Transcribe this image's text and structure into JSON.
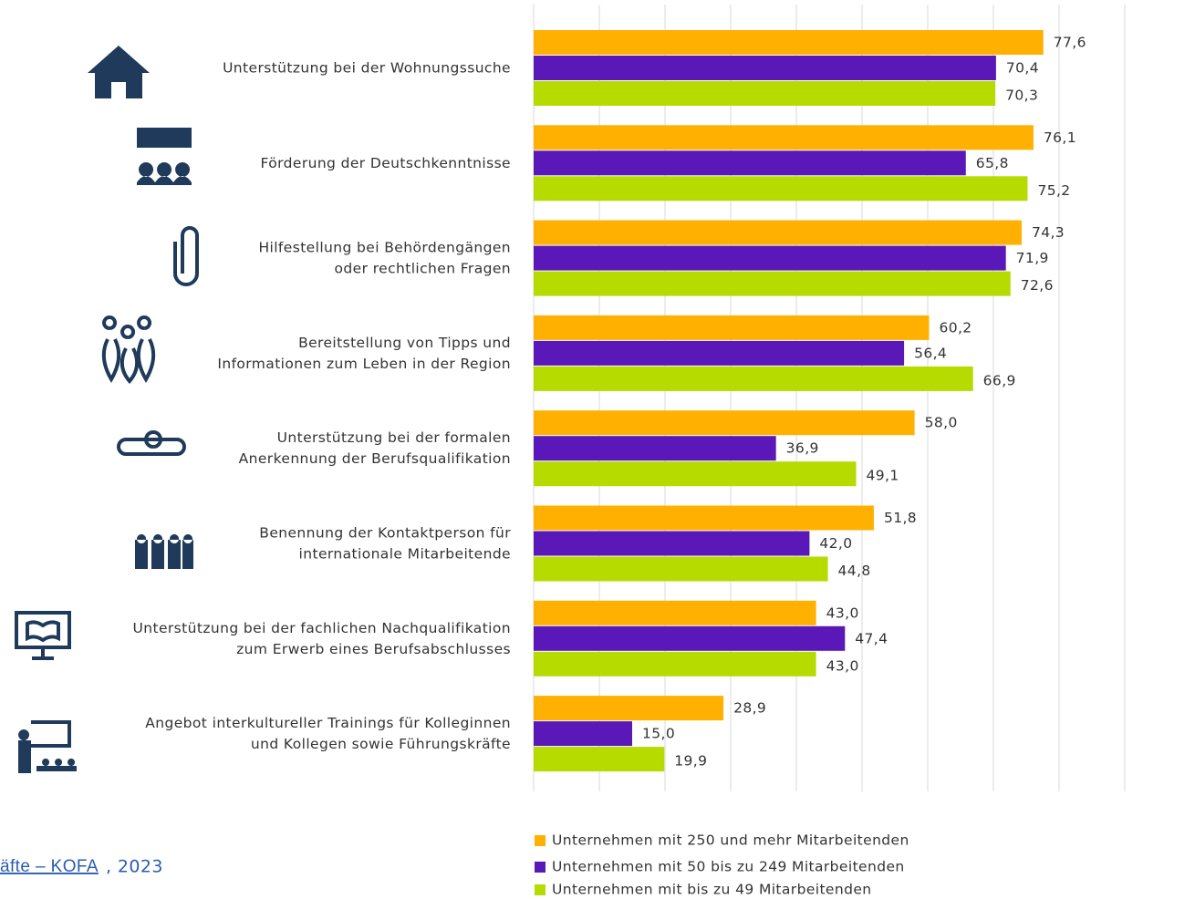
{
  "chart_data": {
    "type": "barh",
    "categories": [
      [
        "Unterstützung bei der Wohnungssuche"
      ],
      [
        "Förderung der Deutschkenntnisse"
      ],
      [
        "Hilfestellung bei Behördengängen",
        "oder rechtlichen Fragen"
      ],
      [
        "Bereitstellung von Tipps und",
        "Informationen zum Leben in der Region"
      ],
      [
        "Unterstützung bei der formalen",
        "Anerkennung der Berufsqualifikation"
      ],
      [
        "Benennung der Kontaktperson für",
        "internationale Mitarbeitende"
      ],
      [
        "Unterstützung bei der fachlichen Nachqualifikation",
        "zum Erwerb eines Berufsabschlusses"
      ],
      [
        "Angebot interkultureller Trainings für Kolleginnen",
        "und Kollegen sowie Führungskräfte"
      ]
    ],
    "series": [
      {
        "name": "Unternehmen mit 250 und mehr Mitarbeitenden",
        "color": "#ffb000",
        "values": [
          77.6,
          76.1,
          74.3,
          60.2,
          58.0,
          51.8,
          43.0,
          28.9
        ],
        "value_labels": [
          "77,6",
          "76,1",
          "74,3",
          "60,2",
          "58,0",
          "51,8",
          "43,0",
          "28,9"
        ]
      },
      {
        "name": "Unternehmen mit 50 bis zu 249 Mitarbeitenden",
        "color": "#5a18b8",
        "values": [
          70.4,
          65.8,
          71.9,
          56.4,
          36.9,
          42.0,
          47.4,
          15.0
        ],
        "value_labels": [
          "70,4",
          "65,8",
          "71,9",
          "56,4",
          "36,9",
          "42,0",
          "47,4",
          "15,0"
        ]
      },
      {
        "name": "Unternehmen mit bis zu 49 Mitarbeitenden",
        "color": "#b5db00",
        "values": [
          70.3,
          75.2,
          72.6,
          66.9,
          49.1,
          44.8,
          43.0,
          19.9
        ],
        "value_labels": [
          "70,3",
          "75,2",
          "72,6",
          "66,9",
          "49,1",
          "44,8",
          "43,0",
          "19,9"
        ]
      }
    ],
    "xlim": [
      0,
      90
    ],
    "xticks": [
      0,
      10,
      20,
      30,
      40,
      50,
      60,
      70,
      80,
      90
    ],
    "grid": true,
    "source_link": "äfte – KOFA",
    "source_rest": ", 2023"
  }
}
